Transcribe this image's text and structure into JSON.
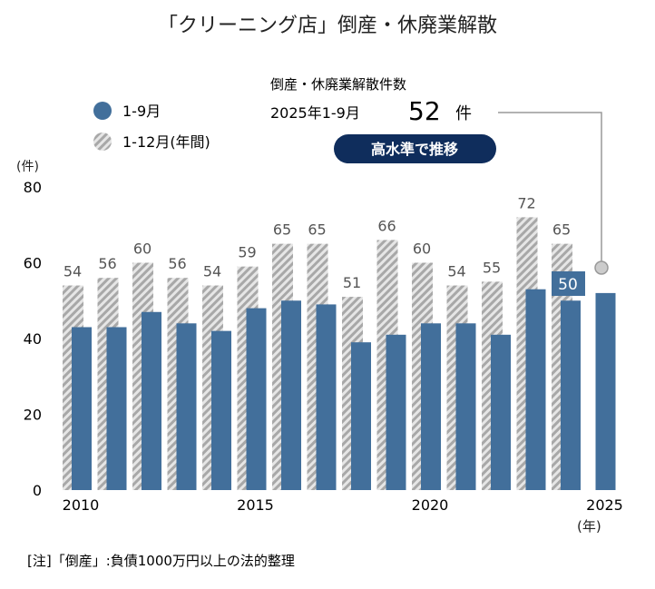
{
  "chart_data": {
    "type": "bar",
    "title": "「クリーニング店」倒産・休廃業解散",
    "ylabel": "(件)",
    "xlabel": "(年)",
    "ylim": [
      0,
      80
    ],
    "yticks": [
      0,
      20,
      40,
      60,
      80
    ],
    "xticks": [
      2010,
      2015,
      2020,
      2025
    ],
    "categories": [
      2010,
      2011,
      2012,
      2013,
      2014,
      2015,
      2016,
      2017,
      2018,
      2019,
      2020,
      2021,
      2022,
      2023,
      2024,
      2025
    ],
    "series": [
      {
        "name": "1-12月(年間)",
        "values": [
          54,
          56,
          60,
          56,
          54,
          59,
          65,
          65,
          51,
          66,
          60,
          54,
          55,
          72,
          65,
          null
        ],
        "color": "#aaaaaa",
        "pattern": "hatched"
      },
      {
        "name": "1-9月",
        "values": [
          43,
          43,
          47,
          44,
          42,
          48,
          50,
          49,
          39,
          41,
          44,
          44,
          41,
          53,
          50,
          52
        ],
        "color": "#426f9b"
      }
    ],
    "highlight_label": "50",
    "legend": "top-left",
    "grid": false,
    "annotation": {
      "heading": "倒産・休廃業解散件数",
      "period": "2025年1-9月",
      "value": "52",
      "unit": "件",
      "badge": "高水準で推移",
      "badge_color": "#0f2d5c"
    },
    "note": "[注]「倒産」:負債1000万円以上の法的整理"
  }
}
